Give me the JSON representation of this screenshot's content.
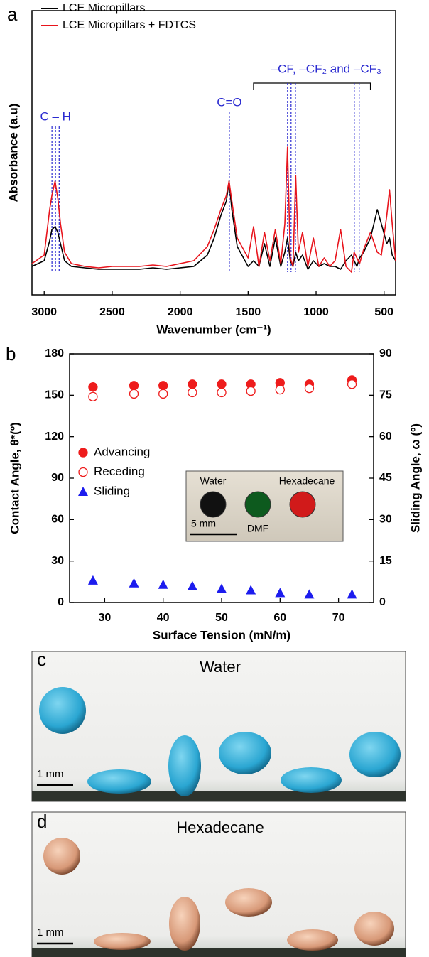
{
  "chart_data": [
    {
      "type": "line",
      "panel": "a",
      "x_label": "Wavenumber (cm⁻¹)",
      "y_label": "Absorbance (a.u)",
      "xlim": [
        3090,
        415
      ],
      "xticks": [
        3000,
        2500,
        2000,
        1500,
        1000,
        500
      ],
      "ylim": [
        0,
        1
      ],
      "x": [
        3090,
        3000,
        2960,
        2943,
        2920,
        2900,
        2880,
        2850,
        2800,
        2700,
        2600,
        2500,
        2400,
        2300,
        2200,
        2100,
        2000,
        1900,
        1800,
        1750,
        1700,
        1660,
        1640,
        1620,
        1580,
        1500,
        1460,
        1420,
        1380,
        1340,
        1300,
        1260,
        1230,
        1210,
        1190,
        1170,
        1150,
        1130,
        1100,
        1060,
        1020,
        980,
        940,
        900,
        860,
        820,
        780,
        740,
        720,
        700,
        680,
        650,
        600,
        550,
        520,
        480,
        460,
        440,
        415
      ],
      "series": [
        {
          "name": "LCE Micropillars",
          "color": "#000000",
          "values": [
            0.1,
            0.12,
            0.19,
            0.23,
            0.24,
            0.22,
            0.18,
            0.12,
            0.1,
            0.095,
            0.09,
            0.09,
            0.09,
            0.09,
            0.095,
            0.09,
            0.095,
            0.1,
            0.14,
            0.2,
            0.28,
            0.33,
            0.4,
            0.3,
            0.17,
            0.1,
            0.12,
            0.1,
            0.18,
            0.1,
            0.2,
            0.1,
            0.15,
            0.2,
            0.12,
            0.1,
            0.15,
            0.12,
            0.14,
            0.09,
            0.12,
            0.1,
            0.11,
            0.1,
            0.1,
            0.09,
            0.12,
            0.14,
            0.12,
            0.1,
            0.13,
            0.15,
            0.2,
            0.3,
            0.25,
            0.18,
            0.2,
            0.14,
            0.12
          ]
        },
        {
          "name": "LCE Micropillars + FDTCS",
          "color": "#e8141c",
          "values": [
            0.11,
            0.14,
            0.3,
            0.35,
            0.4,
            0.34,
            0.25,
            0.15,
            0.11,
            0.1,
            0.095,
            0.1,
            0.1,
            0.1,
            0.105,
            0.1,
            0.11,
            0.12,
            0.17,
            0.23,
            0.3,
            0.35,
            0.4,
            0.33,
            0.2,
            0.13,
            0.24,
            0.1,
            0.22,
            0.12,
            0.23,
            0.11,
            0.25,
            0.52,
            0.13,
            0.1,
            0.42,
            0.15,
            0.22,
            0.1,
            0.2,
            0.1,
            0.13,
            0.1,
            0.12,
            0.23,
            0.1,
            0.08,
            0.15,
            0.13,
            0.11,
            0.16,
            0.22,
            0.15,
            0.14,
            0.28,
            0.37,
            0.25,
            0.12
          ]
        }
      ],
      "annotations": [
        {
          "text": "C – H",
          "x": [
            2943,
            2917,
            2890
          ]
        },
        {
          "text": "C=O",
          "x": [
            1638
          ]
        },
        {
          "text": "–CF, –CF₂ and –CF₃",
          "x": [
            1210,
            1184,
            1152,
            719,
            683
          ],
          "bracket": [
            1460,
            600
          ]
        }
      ],
      "annotation_color": "#2a2ad0"
    },
    {
      "type": "scatter",
      "panel": "b",
      "x_label": "Surface Tension (mN/m)",
      "y_label": "Contact Angle, θ*(º)",
      "y2_label": "Sliding Angle, ω (º)",
      "xlim": [
        24,
        76
      ],
      "xticks": [
        30,
        40,
        50,
        60,
        70
      ],
      "ylim": [
        0,
        180
      ],
      "yticks": [
        0,
        30,
        60,
        90,
        120,
        150,
        180
      ],
      "y2lim": [
        0,
        90
      ],
      "y2ticks": [
        0,
        15,
        30,
        45,
        60,
        75,
        90
      ],
      "x": [
        28,
        35,
        40,
        45,
        50,
        55,
        60,
        65,
        72.3
      ],
      "series": [
        {
          "name": "Advancing",
          "color": "#ee1c1c",
          "marker": "filled",
          "values": [
            156,
            157,
            157,
            158,
            158,
            158,
            159,
            158,
            161
          ]
        },
        {
          "name": "Receding",
          "color": "#ee1c1c",
          "marker": "open",
          "values": [
            149,
            151,
            151,
            152,
            152,
            153,
            154,
            155,
            158
          ]
        },
        {
          "name": "Sliding",
          "color": "#1c1cee",
          "marker": "triangle",
          "axis": "y2",
          "values": [
            8,
            7,
            6.5,
            6,
            5,
            4.5,
            3.5,
            3,
            3
          ]
        }
      ],
      "inset": {
        "labels": [
          "Water",
          "DMF",
          "Hexadecane"
        ],
        "scale_bar": "5 mm"
      }
    }
  ],
  "photos": [
    {
      "letter": "c",
      "label": "Water",
      "scale_bar": "1 mm"
    },
    {
      "letter": "d",
      "label": "Hexadecane",
      "scale_bar": "1 mm"
    }
  ]
}
